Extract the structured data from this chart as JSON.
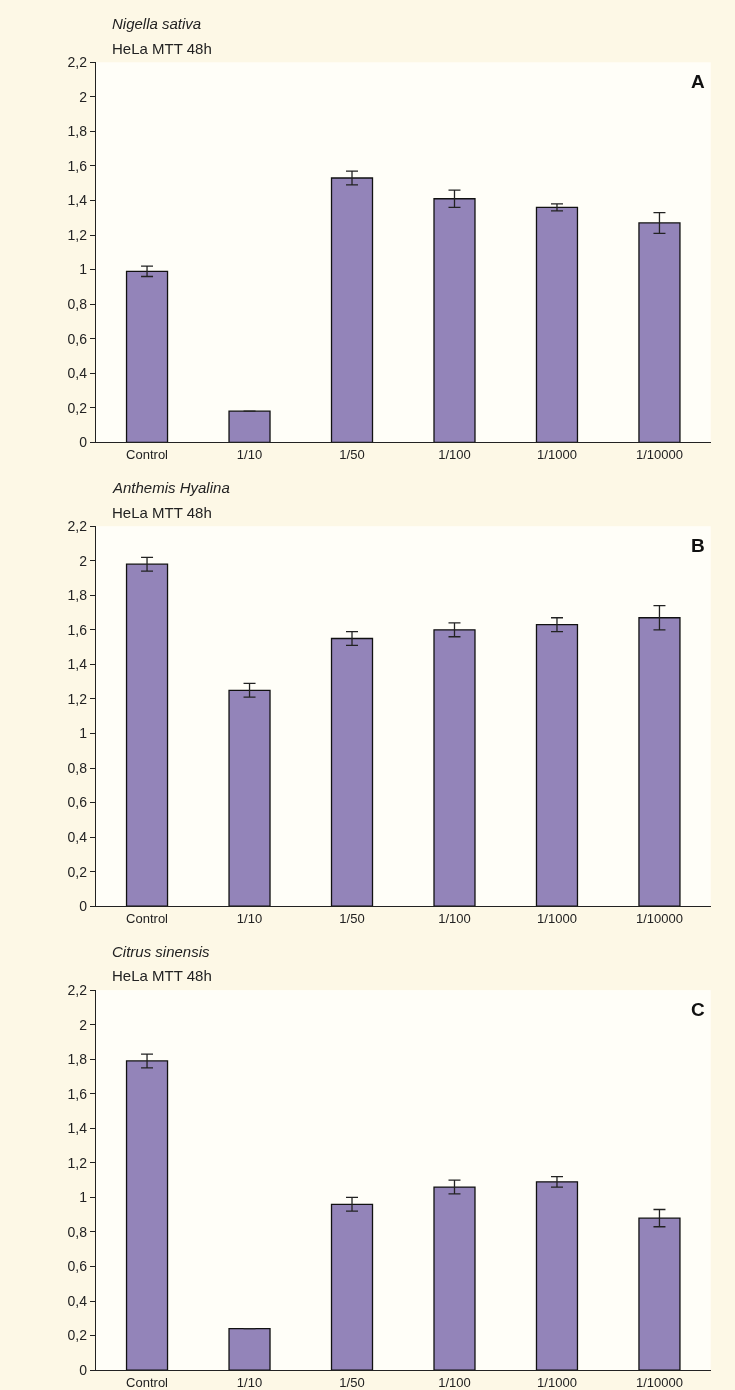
{
  "chart_data": [
    {
      "type": "bar",
      "title": "Nigella sativa",
      "subtitle": "HeLa MTT 48h",
      "annotations": [
        "A"
      ],
      "categories": [
        "Control",
        "1/10",
        "1/50",
        "1/100",
        "1/1000",
        "1/10000"
      ],
      "values": [
        0.99,
        0.18,
        1.53,
        1.41,
        1.36,
        1.27
      ],
      "errors": [
        0.03,
        0,
        0.04,
        0.05,
        0.02,
        0.06
      ],
      "color": "#9384b9",
      "ylim": [
        0,
        2.2
      ],
      "yticks": [
        0,
        {
          "value": 0.2,
          "label": "0,2"
        },
        {
          "value": 0.4,
          "label": "0,4"
        },
        {
          "value": 0.6,
          "label": "0,6"
        },
        {
          "value": 0.8,
          "label": "0,8"
        },
        1,
        {
          "value": 1.2,
          "label": "1,2"
        },
        {
          "value": 1.4,
          "label": "1,4"
        },
        {
          "value": 1.6,
          "label": "1,6"
        },
        {
          "value": 1.8,
          "label": "1,8"
        },
        2,
        {
          "value": 2.2,
          "label": "2,2"
        }
      ],
      "grid": false,
      "legend": false
    },
    {
      "type": "bar",
      "title": "Anthemis Hyalina",
      "subtitle": "HeLa MTT 48h",
      "annotations": [
        "B"
      ],
      "categories": [
        "Control",
        "1/10",
        "1/50",
        "1/100",
        "1/1000",
        "1/10000"
      ],
      "values": [
        1.98,
        1.25,
        1.55,
        1.6,
        1.63,
        1.67
      ],
      "errors": [
        0.04,
        0.04,
        0.04,
        0.04,
        0.04,
        0.07
      ],
      "color": "#9384b9",
      "ylim": [
        0,
        2.2
      ],
      "yticks": [
        0,
        {
          "value": 0.2,
          "label": "0,2"
        },
        {
          "value": 0.4,
          "label": "0,4"
        },
        {
          "value": 0.6,
          "label": "0,6"
        },
        {
          "value": 0.8,
          "label": "0,8"
        },
        1,
        {
          "value": 1.2,
          "label": "1,2"
        },
        {
          "value": 1.4,
          "label": "1,4"
        },
        {
          "value": 1.6,
          "label": "1,6"
        },
        {
          "value": 1.8,
          "label": "1,8"
        },
        2,
        {
          "value": 2.2,
          "label": "2,2"
        }
      ],
      "grid": false,
      "legend": false
    },
    {
      "type": "bar",
      "title": "Citrus sinensis",
      "subtitle": "HeLa MTT 48h",
      "annotations": [
        "C"
      ],
      "categories": [
        "Control",
        "1/10",
        "1/50",
        "1/100",
        "1/1000",
        "1/10000"
      ],
      "values": [
        1.79,
        0.24,
        0.96,
        1.06,
        1.09,
        0.88
      ],
      "errors": [
        0.04,
        0,
        0.04,
        0.04,
        0.03,
        0.05
      ],
      "color": "#9384b9",
      "ylim": [
        0,
        2.2
      ],
      "yticks": [
        0,
        {
          "value": 0.2,
          "label": "0,2"
        },
        {
          "value": 0.4,
          "label": "0,4"
        },
        {
          "value": 0.6,
          "label": "0,6"
        },
        {
          "value": 0.8,
          "label": "0,8"
        },
        1,
        {
          "value": 1.2,
          "label": "1,2"
        },
        {
          "value": 1.4,
          "label": "1,4"
        },
        {
          "value": 1.6,
          "label": "1,6"
        },
        {
          "value": 1.8,
          "label": "1,8"
        },
        2,
        {
          "value": 2.2,
          "label": "2,2"
        }
      ],
      "grid": false,
      "legend": false
    }
  ]
}
